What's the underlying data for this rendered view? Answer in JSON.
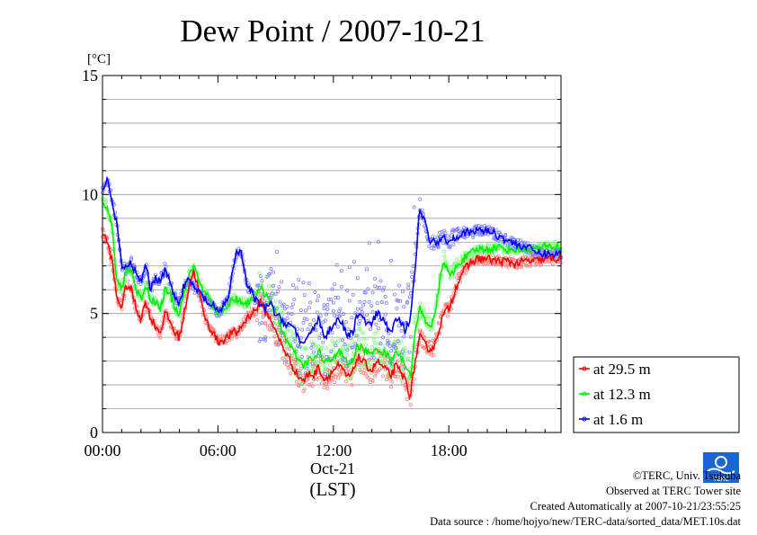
{
  "chart_data": {
    "type": "line",
    "title": "Dew Point / 2007-10-21",
    "ylabel": "[°C]",
    "xlabel": "(LST)",
    "date_label": "Oct-21",
    "xlim": [
      0,
      23.83
    ],
    "ylim": [
      0,
      15
    ],
    "yticks": [
      0,
      5,
      10,
      15
    ],
    "xticks": [
      {
        "hour": 0,
        "label": "00:00"
      },
      {
        "hour": 6,
        "label": "06:00"
      },
      {
        "hour": 12,
        "label": "12:00"
      },
      {
        "hour": 18,
        "label": "18:00"
      }
    ],
    "grid": true,
    "legend_position": "right",
    "series": [
      {
        "name": "at 29.5 m",
        "color": "#ff0000",
        "scatter_color": "#ff8080",
        "x": [
          0,
          0.25,
          0.5,
          0.75,
          1,
          1.25,
          1.5,
          1.75,
          2,
          2.25,
          2.5,
          2.75,
          3,
          3.25,
          3.5,
          3.75,
          4,
          4.25,
          4.5,
          4.75,
          5,
          5.25,
          5.5,
          5.75,
          6,
          6.25,
          6.5,
          6.75,
          7,
          7.25,
          7.5,
          7.75,
          8,
          8.25,
          8.5,
          8.75,
          9,
          9.25,
          9.5,
          9.75,
          10,
          10.25,
          10.5,
          10.75,
          11,
          11.25,
          11.5,
          11.75,
          12,
          12.25,
          12.5,
          12.75,
          13,
          13.25,
          13.5,
          13.75,
          14,
          14.25,
          14.5,
          14.75,
          15,
          15.25,
          15.5,
          15.75,
          16,
          16.25,
          16.5,
          16.75,
          17,
          17.25,
          17.5,
          17.75,
          18,
          18.25,
          18.5,
          18.75,
          19,
          19.25,
          19.5,
          19.75,
          20,
          20.5,
          21,
          21.5,
          22,
          22.5,
          23,
          23.5,
          23.83
        ],
        "values": [
          8.4,
          8.0,
          7.2,
          5.6,
          5.3,
          6.2,
          6.0,
          5.2,
          4.8,
          5.5,
          4.8,
          4.5,
          4.2,
          5.0,
          4.7,
          4.2,
          4.0,
          5.0,
          6.2,
          6.8,
          6.0,
          5.0,
          4.5,
          4.2,
          3.8,
          3.9,
          4.0,
          4.2,
          4.2,
          4.5,
          4.8,
          5.0,
          5.2,
          5.5,
          5.0,
          4.8,
          4.2,
          3.8,
          3.4,
          3.0,
          2.6,
          2.3,
          2.2,
          2.5,
          2.4,
          2.8,
          2.2,
          2.4,
          2.6,
          2.8,
          2.6,
          2.3,
          2.5,
          3.2,
          3.0,
          2.8,
          2.6,
          3.0,
          2.8,
          2.6,
          2.4,
          2.8,
          2.5,
          2.2,
          1.5,
          3.0,
          4.0,
          3.7,
          3.5,
          3.6,
          4.4,
          5.0,
          5.2,
          5.8,
          6.4,
          6.8,
          7.0,
          7.2,
          7.3,
          7.3,
          7.3,
          7.2,
          7.2,
          7.1,
          7.2,
          7.2,
          7.3,
          7.3,
          7.3
        ]
      },
      {
        "name": "at 12.3 m",
        "color": "#00ee00",
        "scatter_color": "#80ff80",
        "x": [
          0,
          0.25,
          0.5,
          0.75,
          1,
          1.25,
          1.5,
          1.75,
          2,
          2.25,
          2.5,
          2.75,
          3,
          3.25,
          3.5,
          3.75,
          4,
          4.25,
          4.5,
          4.75,
          5,
          5.25,
          5.5,
          5.75,
          6,
          6.25,
          6.5,
          6.75,
          7,
          7.25,
          7.5,
          7.75,
          8,
          8.25,
          8.5,
          8.75,
          9,
          9.25,
          9.5,
          9.75,
          10,
          10.25,
          10.5,
          10.75,
          11,
          11.25,
          11.5,
          11.75,
          12,
          12.25,
          12.5,
          12.75,
          13,
          13.25,
          13.5,
          13.75,
          14,
          14.25,
          14.5,
          14.75,
          15,
          15.25,
          15.5,
          15.75,
          16,
          16.25,
          16.5,
          16.75,
          17,
          17.25,
          17.5,
          17.75,
          18,
          18.25,
          18.5,
          18.75,
          19,
          19.25,
          19.5,
          19.75,
          20,
          20.5,
          21,
          21.5,
          22,
          22.5,
          23,
          23.5,
          23.83
        ],
        "values": [
          9.8,
          9.4,
          8.6,
          6.3,
          6.0,
          6.9,
          6.8,
          6.0,
          5.6,
          6.2,
          5.6,
          5.5,
          5.2,
          6.0,
          5.8,
          5.3,
          5.0,
          6.0,
          6.6,
          6.9,
          6.4,
          6.0,
          5.7,
          5.3,
          5.0,
          5.2,
          5.3,
          5.6,
          5.6,
          5.5,
          5.4,
          5.6,
          5.8,
          6.0,
          5.8,
          5.5,
          5.0,
          4.5,
          4.0,
          3.6,
          3.3,
          2.9,
          2.8,
          3.1,
          3.0,
          3.5,
          2.9,
          3.0,
          3.2,
          3.4,
          3.2,
          2.9,
          3.0,
          3.7,
          3.5,
          3.4,
          3.2,
          3.6,
          3.4,
          3.3,
          3.0,
          3.5,
          3.1,
          2.9,
          2.3,
          4.2,
          5.2,
          4.8,
          4.5,
          4.7,
          6.2,
          7.3,
          6.6,
          6.7,
          7.1,
          7.3,
          7.4,
          7.6,
          7.7,
          7.7,
          7.7,
          7.8,
          7.7,
          7.7,
          7.7,
          7.7,
          7.8,
          7.8,
          7.8
        ]
      },
      {
        "name": "at 1.6 m",
        "color": "#0000ff",
        "scatter_color": "#8080ff",
        "x": [
          0,
          0.25,
          0.5,
          0.75,
          1,
          1.25,
          1.5,
          1.75,
          2,
          2.25,
          2.5,
          2.75,
          3,
          3.25,
          3.5,
          3.75,
          4,
          4.25,
          4.5,
          4.75,
          5,
          5.25,
          5.5,
          5.75,
          6,
          6.25,
          6.5,
          6.75,
          7,
          7.25,
          7.5,
          7.75,
          8,
          8.25,
          8.5,
          8.75,
          9,
          9.25,
          9.5,
          9.75,
          10,
          10.25,
          10.5,
          10.75,
          11,
          11.25,
          11.5,
          11.75,
          12,
          12.25,
          12.5,
          12.75,
          13,
          13.25,
          13.5,
          13.75,
          14,
          14.25,
          14.5,
          14.75,
          15,
          15.25,
          15.5,
          15.75,
          16,
          16.25,
          16.5,
          16.75,
          17,
          17.25,
          17.5,
          17.75,
          18,
          18.25,
          18.5,
          18.75,
          19,
          19.25,
          19.5,
          19.75,
          20,
          20.5,
          21,
          21.5,
          22,
          22.5,
          23,
          23.5,
          23.83
        ],
        "values": [
          10.2,
          10.6,
          9.8,
          8.7,
          7.0,
          6.8,
          7.2,
          6.6,
          6.3,
          7.0,
          6.0,
          6.5,
          6.4,
          6.9,
          6.3,
          5.7,
          5.5,
          6.2,
          6.4,
          6.1,
          5.9,
          5.7,
          5.4,
          5.3,
          5.0,
          5.3,
          5.6,
          6.7,
          7.7,
          7.4,
          6.2,
          5.9,
          5.5,
          5.3,
          5.2,
          5.5,
          4.9,
          4.8,
          4.6,
          4.5,
          4.4,
          3.8,
          3.6,
          4.2,
          4.5,
          4.8,
          4.0,
          4.2,
          4.6,
          4.8,
          4.5,
          4.0,
          4.2,
          5.0,
          4.8,
          4.6,
          4.5,
          5.0,
          4.8,
          4.5,
          4.2,
          4.8,
          4.6,
          4.2,
          4.9,
          7.0,
          9.5,
          8.8,
          8.1,
          8.0,
          8.1,
          8.2,
          8.0,
          8.2,
          8.3,
          8.4,
          8.4,
          8.4,
          8.5,
          8.5,
          8.5,
          8.3,
          8.1,
          7.9,
          7.8,
          7.6,
          7.5,
          7.5,
          7.5
        ]
      }
    ]
  },
  "footer": {
    "copyright": "©TERC, Univ. Tsukuba",
    "site": "Observed at TERC Tower site",
    "created": "Created Automatically at 2007-10-21/23:55:25",
    "source": "Data source : /home/hojyo/new/TERC-data/sorted_data/MET.10s.dat",
    "logo_text": "TERC"
  }
}
